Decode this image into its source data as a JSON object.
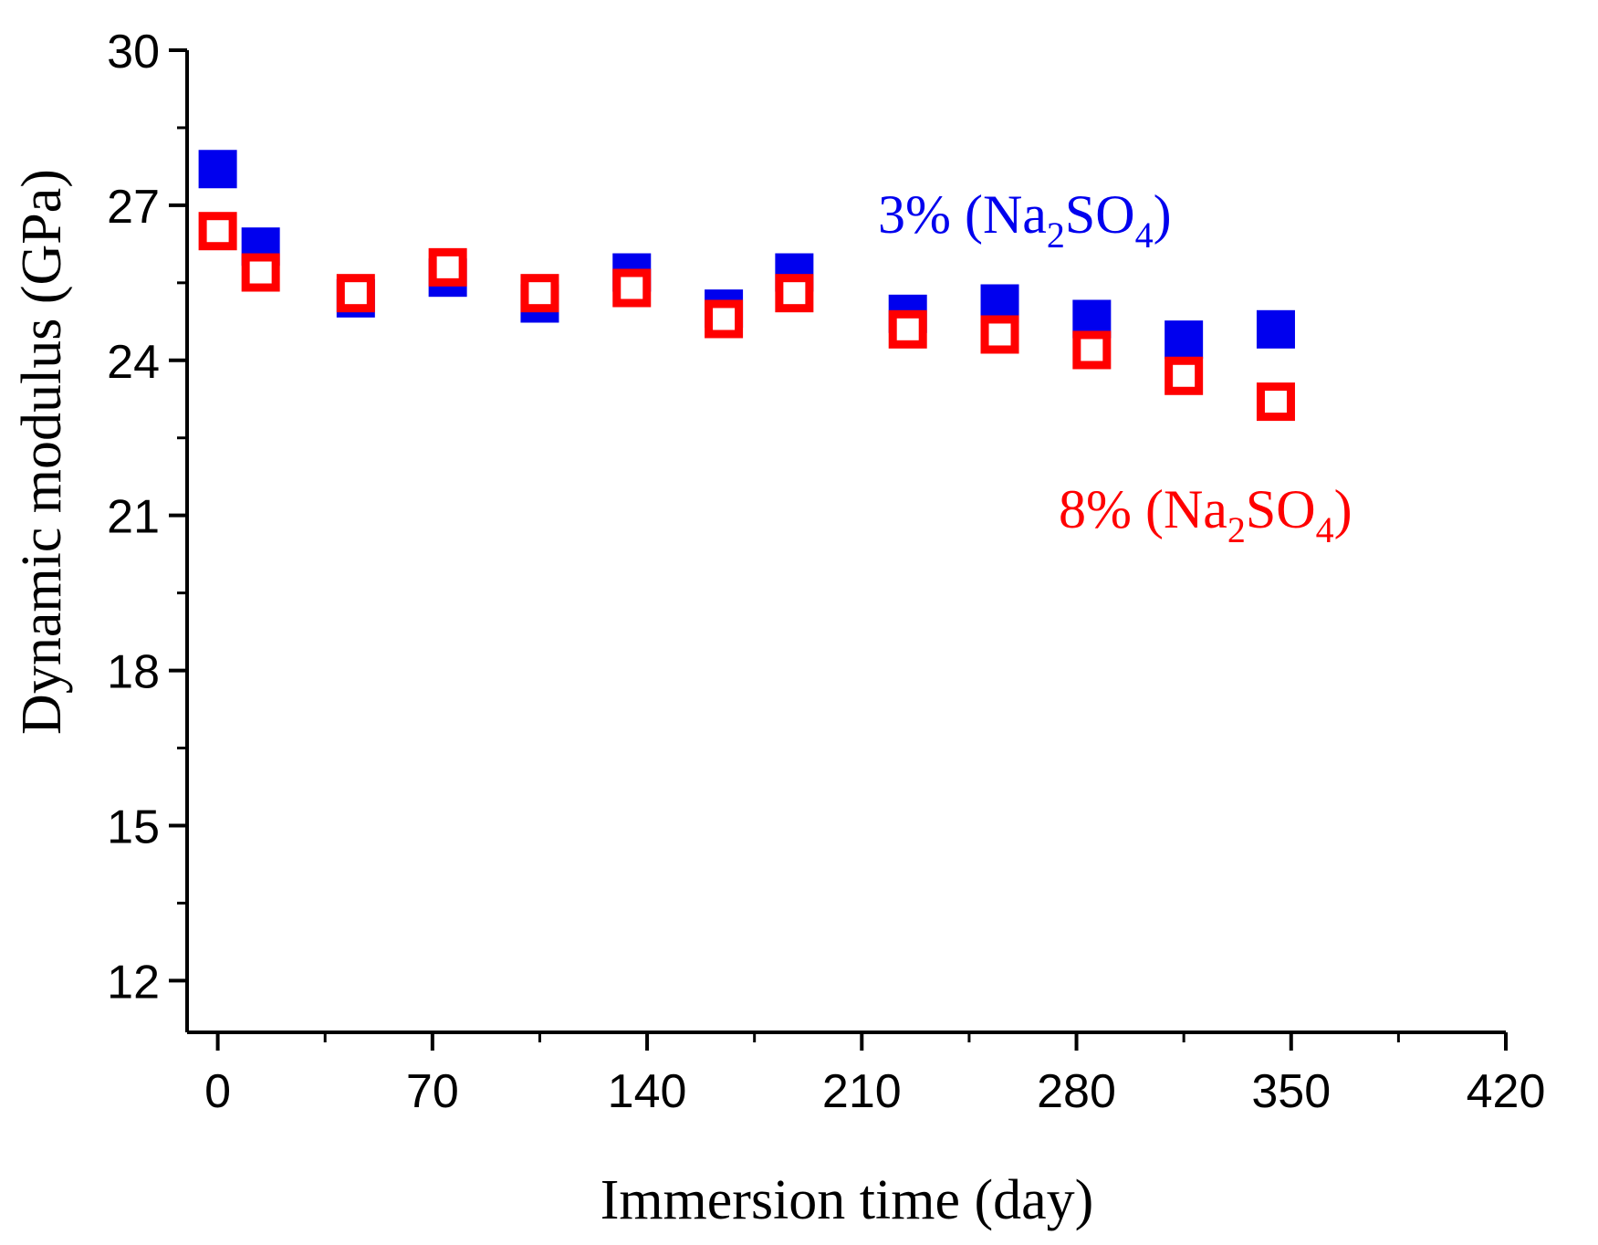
{
  "chart_data": {
    "type": "scatter",
    "title": "",
    "xlabel": "Immersion time (day)",
    "ylabel": "Dynamic modulus (GPa)",
    "xlim": [
      -10,
      420
    ],
    "ylim": [
      11,
      30
    ],
    "xticks": [
      0,
      70,
      140,
      210,
      280,
      350,
      420
    ],
    "yticks": [
      12,
      15,
      18,
      21,
      24,
      27,
      30
    ],
    "x_tick_labels": [
      "0",
      "70",
      "140",
      "210",
      "280",
      "350",
      "420"
    ],
    "y_tick_labels": [
      "12",
      "15",
      "18",
      "21",
      "24",
      "27",
      "30"
    ],
    "series": [
      {
        "name": "3% (Na2SO4)",
        "label_main": "3% (Na",
        "label_sub1": "2",
        "label_mid": "SO",
        "label_sub2": "4",
        "label_end": ")",
        "color": "#0000ee",
        "marker": "filled-square",
        "x": [
          0,
          14,
          45,
          75,
          105,
          135,
          165,
          188,
          225,
          255,
          285,
          315,
          345
        ],
        "y": [
          27.7,
          26.2,
          25.2,
          25.6,
          25.1,
          25.7,
          25.0,
          25.7,
          24.9,
          25.1,
          24.8,
          24.4,
          24.6
        ]
      },
      {
        "name": "8% (Na2SO4)",
        "label_main": "8% (Na",
        "label_sub1": "2",
        "label_mid": "SO",
        "label_sub2": "4",
        "label_end": ")",
        "color": "#ff0000",
        "marker": "open-square",
        "x": [
          0,
          14,
          45,
          75,
          105,
          135,
          165,
          188,
          225,
          255,
          285,
          315,
          345
        ],
        "y": [
          26.5,
          25.7,
          25.3,
          25.8,
          25.3,
          25.4,
          24.8,
          25.3,
          24.6,
          24.5,
          24.2,
          23.7,
          23.2
        ]
      }
    ]
  }
}
